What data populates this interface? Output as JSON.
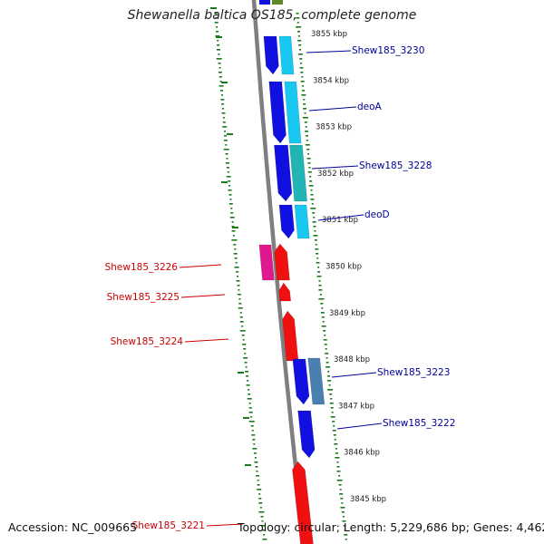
{
  "title": "Shewanella baltica OS185, complete genome",
  "footer": {
    "accession": "Accession: NC_009665",
    "summary": "Topology: circular; Length: 5,229,686 bp; Genes: 4,462"
  },
  "colors": {
    "backbone": "#7f7f7f",
    "gc_dots": "#1a7a1a",
    "forward_cds": "#1010e0",
    "forward_feature": "#19c8f0",
    "forward_feature_alt": "#20b4b4",
    "forward_feature_steel": "#4a80b0",
    "reverse_cds": "#f01010",
    "reverse_feature": "#e01890",
    "forward_label": "#00009a",
    "reverse_label": "#cc0000"
  },
  "ticks": [
    "3855 kbp",
    "3854 kbp",
    "3853 kbp",
    "3852 kbp",
    "3851 kbp",
    "3850 kbp",
    "3849 kbp",
    "3848 kbp",
    "3847 kbp",
    "3846 kbp",
    "3845 kbp"
  ],
  "genes": [
    {
      "label": "Shew185_3230",
      "strand": "forward"
    },
    {
      "label": "deoA",
      "strand": "forward"
    },
    {
      "label": "Shew185_3228",
      "strand": "forward"
    },
    {
      "label": "deoD",
      "strand": "forward"
    },
    {
      "label": "Shew185_3226",
      "strand": "reverse"
    },
    {
      "label": "Shew185_3225",
      "strand": "reverse"
    },
    {
      "label": "Shew185_3224",
      "strand": "reverse"
    },
    {
      "label": "Shew185_3223",
      "strand": "forward"
    },
    {
      "label": "Shew185_3222",
      "strand": "forward"
    },
    {
      "label": "Shew185_3221",
      "strand": "reverse"
    }
  ]
}
